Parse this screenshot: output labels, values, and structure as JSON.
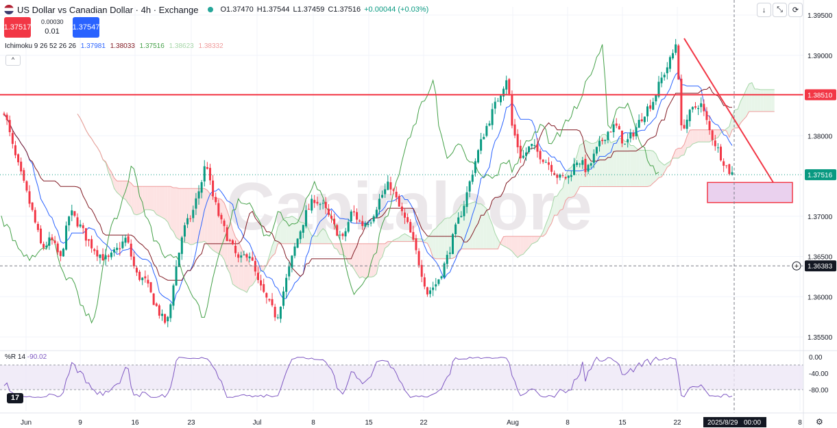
{
  "header": {
    "title": "US Dollar vs Canadian Dollar · 4h · Exchange",
    "open": "O1.37470",
    "high": "H1.37544",
    "low": "L1.37459",
    "close": "C1.37516",
    "change": "+0.00044 (+0.03%)"
  },
  "trade": {
    "sell": "1.37517",
    "buy": "1.37547",
    "spread": "0.00030",
    "lot": "0.01"
  },
  "indicator": {
    "name": "Ichimoku 9 26 52 26 26",
    "conversion": "1.37981",
    "base": "1.38033",
    "lagging": "1.37516",
    "lead_a": "1.38623",
    "lead_b": "1.38332"
  },
  "wr": {
    "name": "%R 14",
    "value": "-90.02"
  },
  "toolbar": {
    "down": "↓",
    "expand": "⤡",
    "cycle": "⟳",
    "collapse": "^"
  },
  "watermark": "Capitalcore",
  "logo": "17",
  "colors": {
    "up": "#089981",
    "down": "#f23645",
    "resistance": "#f23645",
    "support_box": "#e1bee7",
    "conversion": "#2962ff",
    "base": "#801922",
    "lagging": "#43a047",
    "wr": "#7e57c2"
  },
  "chart_data": {
    "type": "candlestick",
    "symbol": "USDCAD",
    "timeframe": "4h",
    "y_ticks": [
      "1.39500",
      "1.39000",
      "1.38000",
      "1.37000",
      "1.36500",
      "1.36000",
      "1.35500"
    ],
    "ylim": [
      1.3525,
      1.3975
    ],
    "x_ticks": [
      "Jun",
      "9",
      "16",
      "23",
      "Jul",
      "8",
      "15",
      "22",
      "Aug",
      "8",
      "15",
      "22",
      "8"
    ],
    "x_current_label": "2025/8/29",
    "x_current_time": "00:00",
    "price_labels": {
      "resistance": "1.38510",
      "current": "1.37516",
      "crosshair": "1.36383"
    },
    "resistance_level": 1.3851,
    "current_price": 1.37516,
    "crosshair_level": 1.36383,
    "target_zone": [
      1.3733,
      1.3742
    ],
    "trendline": [
      [
        1.3921,
        "Aug 21"
      ],
      [
        1.3742,
        "Aug 31"
      ]
    ],
    "close_path": [
      [
        0,
        1.3832
      ],
      [
        10,
        1.3781
      ],
      [
        20,
        1.3743
      ],
      [
        30,
        1.3705
      ],
      [
        40,
        1.366
      ],
      [
        50,
        1.3671
      ],
      [
        60,
        1.3647
      ],
      [
        70,
        1.3706
      ],
      [
        80,
        1.3689
      ],
      [
        90,
        1.3668
      ],
      [
        100,
        1.3654
      ],
      [
        110,
        1.3645
      ],
      [
        120,
        1.3658
      ],
      [
        130,
        1.3673
      ],
      [
        140,
        1.3628
      ],
      [
        150,
        1.3619
      ],
      [
        160,
        1.3592
      ],
      [
        170,
        1.3568
      ],
      [
        175,
        1.3572
      ],
      [
        180,
        1.3618
      ],
      [
        190,
        1.3681
      ],
      [
        200,
        1.3703
      ],
      [
        210,
        1.3744
      ],
      [
        215,
        1.377
      ],
      [
        220,
        1.3732
      ],
      [
        230,
        1.3694
      ],
      [
        240,
        1.3667
      ],
      [
        250,
        1.3643
      ],
      [
        260,
        1.3657
      ],
      [
        270,
        1.3617
      ],
      [
        280,
        1.3594
      ],
      [
        290,
        1.3574
      ],
      [
        300,
        1.3621
      ],
      [
        310,
        1.3665
      ],
      [
        320,
        1.3701
      ],
      [
        330,
        1.3722
      ],
      [
        340,
        1.3711
      ],
      [
        350,
        1.3688
      ],
      [
        360,
        1.3671
      ],
      [
        370,
        1.3707
      ],
      [
        380,
        1.3689
      ],
      [
        390,
        1.3697
      ],
      [
        400,
        1.3723
      ],
      [
        410,
        1.3741
      ],
      [
        420,
        1.3711
      ],
      [
        430,
        1.3686
      ],
      [
        440,
        1.3647
      ],
      [
        450,
        1.3605
      ],
      [
        460,
        1.3617
      ],
      [
        470,
        1.3645
      ],
      [
        480,
        1.3684
      ],
      [
        490,
        1.3719
      ],
      [
        500,
        1.3765
      ],
      [
        510,
        1.3803
      ],
      [
        520,
        1.3832
      ],
      [
        530,
        1.386
      ],
      [
        535,
        1.3875
      ],
      [
        540,
        1.3812
      ],
      [
        550,
        1.3771
      ],
      [
        560,
        1.3788
      ],
      [
        570,
        1.3776
      ],
      [
        580,
        1.3764
      ],
      [
        590,
        1.3747
      ],
      [
        600,
        1.3749
      ],
      [
        610,
        1.3772
      ],
      [
        620,
        1.3756
      ],
      [
        630,
        1.3782
      ],
      [
        640,
        1.3803
      ],
      [
        650,
        1.3813
      ],
      [
        660,
        1.3788
      ],
      [
        670,
        1.3806
      ],
      [
        680,
        1.3828
      ],
      [
        690,
        1.3844
      ],
      [
        700,
        1.3874
      ],
      [
        710,
        1.3898
      ],
      [
        715,
        1.3919
      ],
      [
        720,
        1.3808
      ],
      [
        730,
        1.3829
      ],
      [
        740,
        1.3842
      ],
      [
        750,
        1.3806
      ],
      [
        760,
        1.378
      ],
      [
        770,
        1.3757
      ],
      [
        775,
        1.3752
      ]
    ],
    "wr_ticks": [
      "0.00",
      "-40.00",
      "-80.00"
    ],
    "wr_ylim": [
      -100,
      0
    ],
    "wr_band": [
      -20,
      -80
    ],
    "wr_current": -90.02
  }
}
